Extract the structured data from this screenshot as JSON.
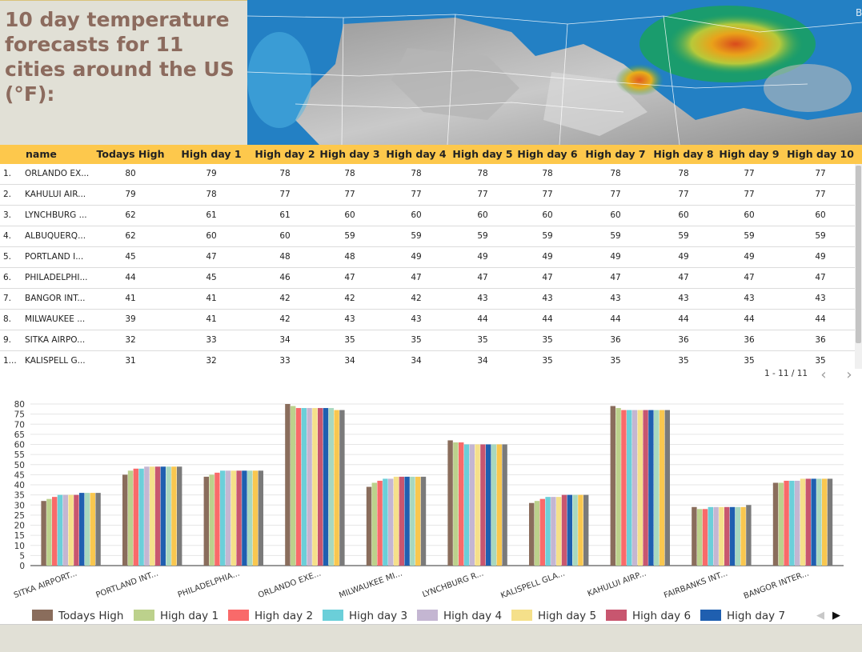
{
  "title": "10 day temperature forecasts for 11 cities around the US (°F):",
  "table": {
    "columns": [
      "name",
      "Todays High",
      "High day 1",
      "High day 2",
      "High day 3",
      "High day 4",
      "High day 5",
      "High day 6",
      "High day 7",
      "High day 8",
      "High day 9",
      "High day 10"
    ],
    "rows": [
      {
        "idx": "1.",
        "name": "ORLANDO EX...",
        "values": [
          "80",
          "79",
          "78",
          "78",
          "78",
          "78",
          "78",
          "78",
          "78",
          "77",
          "77"
        ]
      },
      {
        "idx": "2.",
        "name": "KAHULUI AIR...",
        "values": [
          "79",
          "78",
          "77",
          "77",
          "77",
          "77",
          "77",
          "77",
          "77",
          "77",
          "77"
        ]
      },
      {
        "idx": "3.",
        "name": "LYNCHBURG ...",
        "values": [
          "62",
          "61",
          "61",
          "60",
          "60",
          "60",
          "60",
          "60",
          "60",
          "60",
          "60"
        ]
      },
      {
        "idx": "4.",
        "name": "ALBUQUERQ...",
        "values": [
          "62",
          "60",
          "60",
          "59",
          "59",
          "59",
          "59",
          "59",
          "59",
          "59",
          "59"
        ]
      },
      {
        "idx": "5.",
        "name": "PORTLAND I...",
        "values": [
          "45",
          "47",
          "48",
          "48",
          "49",
          "49",
          "49",
          "49",
          "49",
          "49",
          "49"
        ]
      },
      {
        "idx": "6.",
        "name": "PHILADELPHI...",
        "values": [
          "44",
          "45",
          "46",
          "47",
          "47",
          "47",
          "47",
          "47",
          "47",
          "47",
          "47"
        ]
      },
      {
        "idx": "7.",
        "name": "BANGOR INT...",
        "values": [
          "41",
          "41",
          "42",
          "42",
          "42",
          "43",
          "43",
          "43",
          "43",
          "43",
          "43"
        ]
      },
      {
        "idx": "8.",
        "name": "MILWAUKEE ...",
        "values": [
          "39",
          "41",
          "42",
          "43",
          "43",
          "44",
          "44",
          "44",
          "44",
          "44",
          "44"
        ]
      },
      {
        "idx": "9.",
        "name": "SITKA AIRPO...",
        "values": [
          "32",
          "33",
          "34",
          "35",
          "35",
          "35",
          "35",
          "36",
          "36",
          "36",
          "36"
        ]
      },
      {
        "idx": "1...",
        "name": "KALISPELL G...",
        "values": [
          "31",
          "32",
          "33",
          "34",
          "34",
          "34",
          "35",
          "35",
          "35",
          "35",
          "35"
        ]
      }
    ],
    "pagination": "1 - 11 / 11",
    "prev_icon": "‹",
    "next_icon": "›"
  },
  "legend_nav": {
    "prev": "◀",
    "next": "▶"
  },
  "chart_data": {
    "type": "bar",
    "categories": [
      "SITKA AIRPORT...",
      "PORTLAND INT...",
      "PHILADELPHIA...",
      "ORLANDO EXE...",
      "MILWAUKEE MI...",
      "LYNCHBURG R...",
      "KALISPELL GLA...",
      "KAHULUI AIRP...",
      "FAIRBANKS INT...",
      "BANGOR INTER..."
    ],
    "ylim": [
      0,
      80
    ],
    "yticks": [
      "0",
      "5",
      "10",
      "15",
      "20",
      "25",
      "30",
      "35",
      "40",
      "45",
      "50",
      "55",
      "60",
      "65",
      "70",
      "75",
      "80"
    ],
    "grid": true,
    "legend_position": "bottom",
    "series": [
      {
        "name": "Todays High",
        "color": "#8a6d5c",
        "values": [
          32,
          45,
          44,
          80,
          39,
          62,
          31,
          79,
          29,
          41
        ]
      },
      {
        "name": "High day 1",
        "color": "#bcd18c",
        "values": [
          33,
          47,
          45,
          79,
          41,
          61,
          32,
          78,
          28,
          41
        ]
      },
      {
        "name": "High day 2",
        "color": "#f96a6a",
        "values": [
          34,
          48,
          46,
          78,
          42,
          61,
          33,
          77,
          28,
          42
        ]
      },
      {
        "color": "#6bcfd9",
        "values": [
          35,
          48,
          47,
          78,
          43,
          60,
          34,
          77,
          29,
          42
        ]
      },
      {
        "color": "#c4b6d2",
        "values": [
          35,
          49,
          47,
          78,
          43,
          60,
          34,
          77,
          29,
          42
        ]
      },
      {
        "color": "#f5e08a",
        "values": [
          35,
          49,
          47,
          78,
          44,
          60,
          34,
          77,
          29,
          43
        ]
      },
      {
        "color": "#c8566f",
        "values": [
          35,
          49,
          47,
          78,
          44,
          60,
          35,
          77,
          29,
          43
        ]
      },
      {
        "color": "#1f5fb0",
        "values": [
          36,
          49,
          47,
          78,
          44,
          60,
          35,
          77,
          29,
          43
        ]
      },
      {
        "color": "#a8d8c0",
        "values": [
          36,
          49,
          47,
          78,
          44,
          60,
          35,
          77,
          29,
          43
        ]
      },
      {
        "color": "#f9c74f",
        "values": [
          36,
          49,
          47,
          77,
          44,
          60,
          35,
          77,
          29,
          43
        ]
      },
      {
        "color": "#7a7a7a",
        "values": [
          36,
          49,
          47,
          77,
          44,
          60,
          35,
          77,
          30,
          43
        ]
      }
    ],
    "legend": [
      {
        "label": "Todays High",
        "color": "#8a6d5c"
      },
      {
        "label": "High day 1",
        "color": "#bcd18c"
      },
      {
        "label": "High day 2",
        "color": "#f96a6a"
      },
      {
        "label": "High day 3",
        "color": "#6bcfd9"
      },
      {
        "label": "High day 4",
        "color": "#c4b6d2"
      },
      {
        "label": "High day 5",
        "color": "#f5e08a"
      },
      {
        "label": "High day 6",
        "color": "#c8566f"
      },
      {
        "label": "High day 7",
        "color": "#1f5fb0"
      }
    ]
  }
}
